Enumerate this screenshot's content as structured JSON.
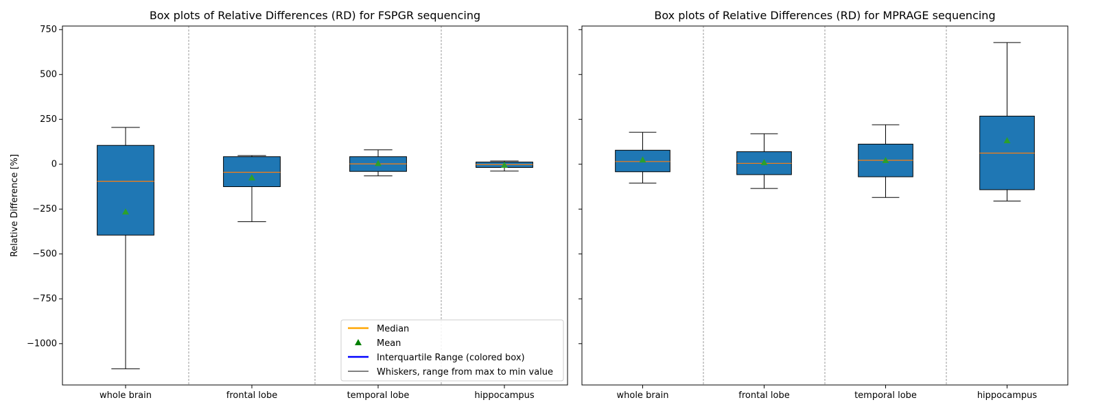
{
  "chart_data": [
    {
      "type": "box",
      "title": "Box plots of Relative Differences (RD) for FSPGR sequencing",
      "ylabel": "Relative Difference [%]",
      "ylim": [
        -1230,
        770
      ],
      "yticks": [
        -1000,
        -750,
        -500,
        -250,
        0,
        250,
        500,
        750
      ],
      "yticklabels": [
        "−1000",
        "−750",
        "−500",
        "−250",
        "0",
        "250",
        "500",
        "750"
      ],
      "categories": [
        "whole brain",
        "frontal lobe",
        "temporal lobe",
        "hippocampus"
      ],
      "boxes": [
        {
          "min": -1140,
          "q1": -395,
          "median": -95,
          "q3": 105,
          "max": 205,
          "mean": -265
        },
        {
          "min": -320,
          "q1": -125,
          "median": -45,
          "q3": 42,
          "max": 48,
          "mean": -75
        },
        {
          "min": -65,
          "q1": -40,
          "median": 2,
          "q3": 42,
          "max": 80,
          "mean": 5
        },
        {
          "min": -38,
          "q1": -18,
          "median": -2,
          "q3": 12,
          "max": 18,
          "mean": -5
        }
      ],
      "legend": {
        "placement": "lower-right",
        "entries": [
          {
            "label": "Median",
            "color": "#ffa500",
            "marker": "line"
          },
          {
            "label": "Mean",
            "color": "#008000",
            "marker": "triangle"
          },
          {
            "label": "Interquartile Range (colored box)",
            "color": "#0000ff",
            "marker": "line"
          },
          {
            "label": "Whiskers, range from max to min value",
            "color": "#000000",
            "marker": "thin-line"
          }
        ]
      }
    },
    {
      "type": "box",
      "title": "Box plots of Relative Differences (RD) for MPRAGE sequencing",
      "ylim": [
        -1230,
        770
      ],
      "categories": [
        "whole brain",
        "frontal lobe",
        "temporal lobe",
        "hippocampus"
      ],
      "boxes": [
        {
          "min": -105,
          "q1": -42,
          "median": 15,
          "q3": 78,
          "max": 178,
          "mean": 25
        },
        {
          "min": -135,
          "q1": -58,
          "median": 5,
          "q3": 70,
          "max": 170,
          "mean": 10
        },
        {
          "min": -185,
          "q1": -70,
          "median": 22,
          "q3": 112,
          "max": 220,
          "mean": 22
        },
        {
          "min": -205,
          "q1": -142,
          "median": 62,
          "q3": 268,
          "max": 678,
          "mean": 132
        }
      ]
    }
  ],
  "colors": {
    "box_fill": "#1f77b4",
    "median_line": "#ff7f0e",
    "mean_marker": "#2ca02c",
    "separator": "#808080"
  }
}
